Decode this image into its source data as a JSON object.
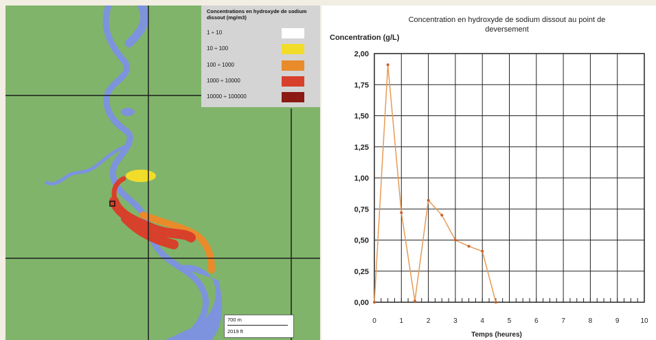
{
  "colors": {
    "map_background": "#80b46a",
    "river": "#7d93dd",
    "grid_line": "#1c1c1c",
    "chart_line": "#e69a55",
    "chart_grid": "#222222"
  },
  "map": {
    "legend": {
      "title": "Concentrations en hydroxyde de sodium dissout (mg/m3)",
      "items": [
        {
          "label": "1 ÷ 10",
          "color": "#ffffff"
        },
        {
          "label": "10 ÷ 100",
          "color": "#f2dc2a"
        },
        {
          "label": "100 ÷ 1000",
          "color": "#e98b2a"
        },
        {
          "label": "1000 ÷ 10000",
          "color": "#d7402a"
        },
        {
          "label": "10000 ÷ 100000",
          "color": "#8b1a12"
        }
      ]
    },
    "scale_bar": {
      "top_label": "700 m",
      "bottom_label": "2019 ft"
    }
  },
  "chart_data": {
    "type": "line",
    "title": "Concentration en hydroxyde de sodium dissout au point de deversement",
    "xlabel": "Temps (heures)",
    "ylabel": "Concentration (g/L)",
    "x": [
      0,
      0.5,
      1,
      1.5,
      2,
      2.5,
      3,
      3.5,
      4,
      4.5
    ],
    "y": [
      0,
      1.91,
      0.72,
      0.01,
      0.82,
      0.7,
      0.5,
      0.45,
      0.41,
      0
    ],
    "xlim": [
      0,
      10
    ],
    "ylim": [
      0,
      2
    ],
    "xticks": [
      "0",
      "1",
      "2",
      "3",
      "4",
      "5",
      "6",
      "7",
      "8",
      "9",
      "10"
    ],
    "yticks": [
      "0,00",
      "0,25",
      "0,50",
      "0,75",
      "1,00",
      "1,25",
      "1,50",
      "1,75",
      "2,00"
    ],
    "grid": true
  }
}
